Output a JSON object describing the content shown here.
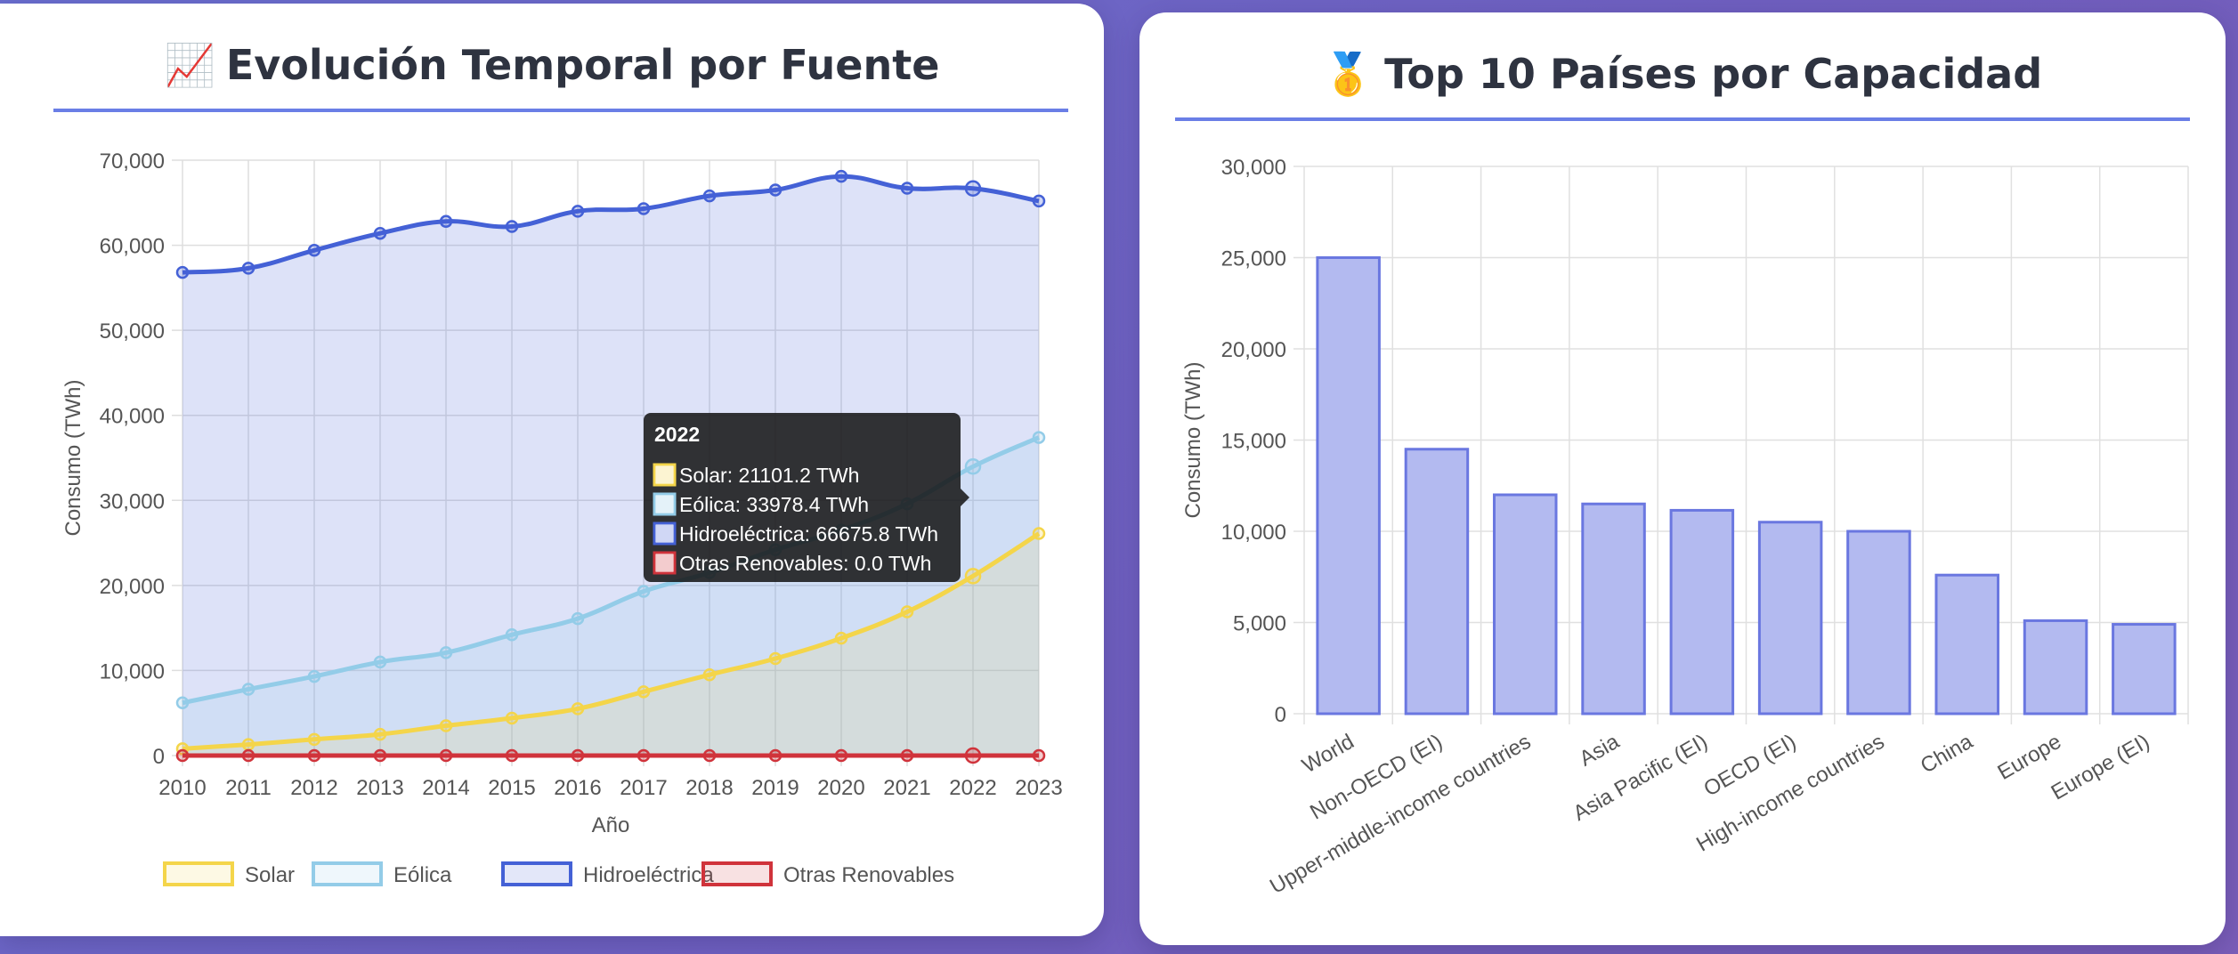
{
  "colors": {
    "solar": "#f4d54a",
    "eolica": "#93cce8",
    "hidro": "#4461d6",
    "otras": "#d0333b",
    "bar_fill": "#b3baf0",
    "bar_stroke": "#6a77e0",
    "accent_rule": "#6a7ee6"
  },
  "left_card": {
    "icon": "chart-increasing-icon",
    "icon_glyph": "📈",
    "title": "Evolución Temporal por Fuente"
  },
  "right_card": {
    "icon": "medal-icon",
    "icon_glyph": "🥇",
    "title": "Top 10 Países por Capacidad"
  },
  "tooltip": {
    "title": "2022",
    "lines": [
      {
        "series": "Solar",
        "text": "Solar: 21101.2 TWh"
      },
      {
        "series": "Eólica",
        "text": "Eólica: 33978.4 TWh"
      },
      {
        "series": "Hidroeléctrica",
        "text": "Hidroeléctrica: 66675.8 TWh"
      },
      {
        "series": "Otras Renovables",
        "text": "Otras Renovables: 0.0 TWh"
      }
    ]
  },
  "chart_data": [
    {
      "type": "area",
      "title": "Evolución Temporal por Fuente",
      "xlabel": "Año",
      "ylabel": "Consumo (TWh)",
      "ylim": [
        0,
        70000
      ],
      "y_ticks": [
        0,
        10000,
        20000,
        30000,
        40000,
        50000,
        60000,
        70000
      ],
      "y_tick_labels": [
        "0",
        "10,000",
        "20,000",
        "30,000",
        "40,000",
        "50,000",
        "60,000",
        "70,000"
      ],
      "grid": true,
      "legend_position": "bottom",
      "categories": [
        "2010",
        "2011",
        "2012",
        "2013",
        "2014",
        "2015",
        "2016",
        "2017",
        "2018",
        "2019",
        "2020",
        "2021",
        "2022",
        "2023"
      ],
      "series": [
        {
          "name": "Solar",
          "values": [
            800,
            1300,
            1900,
            2500,
            3500,
            4400,
            5500,
            7500,
            9500,
            11400,
            13800,
            16900,
            21101.2,
            26100
          ]
        },
        {
          "name": "Eólica",
          "values": [
            6200,
            7800,
            9300,
            11000,
            12100,
            14200,
            16100,
            19300,
            21500,
            24200,
            26500,
            29600,
            33978.4,
            37400
          ]
        },
        {
          "name": "Hidroeléctrica",
          "values": [
            56800,
            57300,
            59400,
            61400,
            62800,
            62200,
            64000,
            64300,
            65800,
            66500,
            68100,
            66700,
            66675.8,
            65200
          ]
        },
        {
          "name": "Otras Renovables",
          "values": [
            0,
            0,
            0,
            0,
            0,
            0,
            0,
            0,
            0,
            0,
            0,
            0,
            0,
            0
          ]
        }
      ],
      "highlighted_category": "2022"
    },
    {
      "type": "bar",
      "title": "Top 10 Países por Capacidad",
      "xlabel": "",
      "ylabel": "Consumo (TWh)",
      "ylim": [
        0,
        30000
      ],
      "y_ticks": [
        0,
        5000,
        10000,
        15000,
        20000,
        25000,
        30000
      ],
      "y_tick_labels": [
        "0",
        "5,000",
        "10,000",
        "15,000",
        "20,000",
        "25,000",
        "30,000"
      ],
      "grid": true,
      "categories": [
        "World",
        "Non-OECD (EI)",
        "Upper-middle-income countries",
        "Asia",
        "Asia Pacific (EI)",
        "OECD (EI)",
        "High-income countries",
        "China",
        "Europe",
        "Europe (EI)"
      ],
      "values": [
        25000,
        14500,
        12000,
        11500,
        11150,
        10500,
        10000,
        7600,
        5100,
        4900
      ]
    }
  ]
}
